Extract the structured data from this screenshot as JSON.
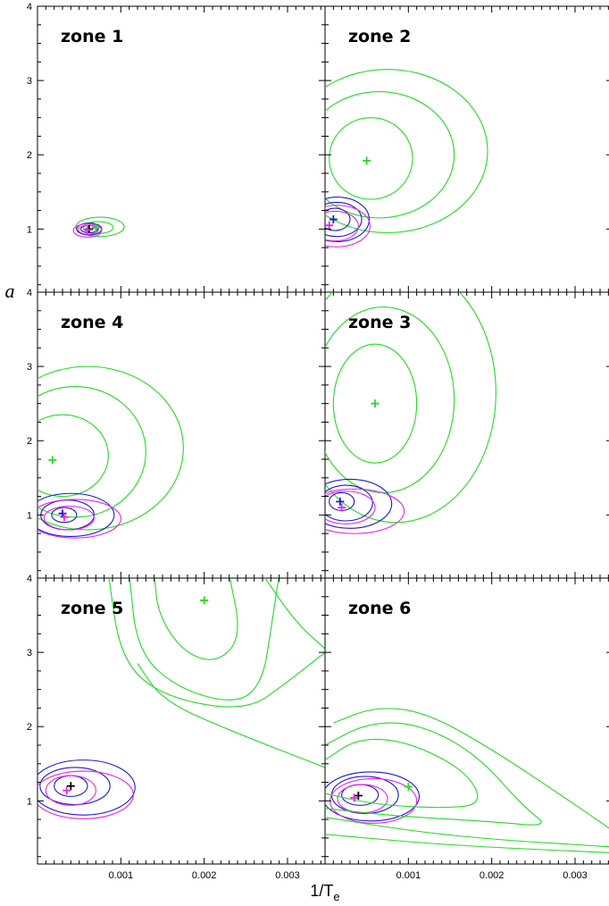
{
  "chart_data": {
    "type": "contour",
    "xlabel": "1/T",
    "xlabel_subscript": "e",
    "ylabel": "a",
    "xlim": [
      0.0,
      0.00345
    ],
    "ylim": [
      0.15,
      4.0
    ],
    "x_ticks": [
      0.001,
      0.002,
      0.003
    ],
    "x_tick_labels": [
      "0.001",
      "0.002",
      "0.003"
    ],
    "y_ticks": [
      1,
      2,
      3,
      4
    ],
    "y_tick_labels": [
      "1",
      "2",
      "3",
      "4"
    ],
    "grid": false,
    "colors": {
      "green": "#22dd22",
      "blue": "#1a1ad0",
      "magenta": "#ee22ee",
      "black": "#000000"
    },
    "panels": [
      {
        "title": "zone 1",
        "markers": [
          {
            "x": 0.00062,
            "y": 1.0,
            "color": "black"
          },
          {
            "x": 0.0006,
            "y": 0.99,
            "color": "magenta"
          },
          {
            "x": 0.0007,
            "y": 1.02,
            "color": "green"
          }
        ],
        "contours": [
          {
            "color": "green",
            "cx": 0.00073,
            "cy": 1.02,
            "rx": 0.00018,
            "ry": 0.08
          },
          {
            "color": "green",
            "cx": 0.00075,
            "cy": 1.03,
            "rx": 0.00029,
            "ry": 0.13
          },
          {
            "color": "blue",
            "cx": 0.00062,
            "cy": 1.0,
            "rx": 0.0001,
            "ry": 0.05
          },
          {
            "color": "blue",
            "cx": 0.00062,
            "cy": 1.0,
            "rx": 0.00015,
            "ry": 0.08
          },
          {
            "color": "magenta",
            "cx": 0.00061,
            "cy": 0.99,
            "rx": 0.00012,
            "ry": 0.06
          },
          {
            "color": "magenta",
            "cx": 0.0006,
            "cy": 0.98,
            "rx": 0.00017,
            "ry": 0.09
          }
        ]
      },
      {
        "title": "zone 2",
        "markers": [
          {
            "x": 0.0005,
            "y": 1.92,
            "color": "green"
          },
          {
            "x": 0.0001,
            "y": 1.13,
            "color": "blue"
          },
          {
            "x": 5e-05,
            "y": 1.05,
            "color": "magenta"
          }
        ],
        "contours": [
          {
            "color": "green",
            "cx": 0.00055,
            "cy": 1.95,
            "rx": 0.0005,
            "ry": 0.55
          },
          {
            "color": "green",
            "cx": 0.00065,
            "cy": 2.0,
            "rx": 0.0009,
            "ry": 0.85
          },
          {
            "color": "green",
            "cx": 0.00075,
            "cy": 2.05,
            "rx": 0.0012,
            "ry": 1.1
          },
          {
            "color": "blue",
            "cx": 0.00012,
            "cy": 1.13,
            "rx": 0.00018,
            "ry": 0.15
          },
          {
            "color": "blue",
            "cx": 0.00014,
            "cy": 1.13,
            "rx": 0.0003,
            "ry": 0.23
          },
          {
            "color": "blue",
            "cx": 0.00015,
            "cy": 1.13,
            "rx": 0.00038,
            "ry": 0.3
          },
          {
            "color": "magenta",
            "cx": 0.00012,
            "cy": 1.04,
            "rx": 0.00028,
            "ry": 0.2
          },
          {
            "color": "magenta",
            "cx": 0.00014,
            "cy": 1.04,
            "rx": 0.0004,
            "ry": 0.28
          }
        ]
      },
      {
        "title": "zone 4",
        "markers": [
          {
            "x": 0.00018,
            "y": 1.74,
            "color": "green"
          },
          {
            "x": 0.0003,
            "y": 1.02,
            "color": "blue"
          },
          {
            "x": 0.00032,
            "y": 0.97,
            "color": "magenta"
          }
        ],
        "contours": [
          {
            "color": "green",
            "cx": 0.0003,
            "cy": 1.8,
            "rx": 0.00055,
            "ry": 0.55
          },
          {
            "color": "green",
            "cx": 0.00045,
            "cy": 1.85,
            "rx": 0.00085,
            "ry": 0.88
          },
          {
            "color": "green",
            "cx": 0.0006,
            "cy": 1.9,
            "rx": 0.00115,
            "ry": 1.1
          },
          {
            "color": "blue",
            "cx": 0.00032,
            "cy": 1.0,
            "rx": 0.00015,
            "ry": 0.1
          },
          {
            "color": "blue",
            "cx": 0.00036,
            "cy": 1.0,
            "rx": 0.00032,
            "ry": 0.2
          },
          {
            "color": "blue",
            "cx": 0.0004,
            "cy": 1.0,
            "rx": 0.00052,
            "ry": 0.29
          },
          {
            "color": "magenta",
            "cx": 0.00038,
            "cy": 0.96,
            "rx": 0.0003,
            "ry": 0.16
          },
          {
            "color": "magenta",
            "cx": 0.00045,
            "cy": 0.95,
            "rx": 0.00055,
            "ry": 0.26
          }
        ]
      },
      {
        "title": "zone 3",
        "markers": [
          {
            "x": 0.0006,
            "y": 2.5,
            "color": "green"
          },
          {
            "x": 0.00018,
            "y": 1.18,
            "color": "blue"
          },
          {
            "x": 0.0002,
            "y": 1.1,
            "color": "magenta"
          }
        ],
        "contours": [
          {
            "color": "green",
            "cx": 0.0006,
            "cy": 2.5,
            "rx": 0.0005,
            "ry": 0.8
          },
          {
            "color": "green",
            "cx": 0.0007,
            "cy": 2.55,
            "rx": 0.00085,
            "ry": 1.25
          },
          {
            "color": "green",
            "cx": 0.00085,
            "cy": 2.65,
            "rx": 0.0012,
            "ry": 1.75
          },
          {
            "color": "blue",
            "cx": 0.0002,
            "cy": 1.18,
            "rx": 0.00015,
            "ry": 0.12
          },
          {
            "color": "blue",
            "cx": 0.00025,
            "cy": 1.16,
            "rx": 0.00032,
            "ry": 0.24
          },
          {
            "color": "blue",
            "cx": 0.0003,
            "cy": 1.15,
            "rx": 0.0005,
            "ry": 0.33
          },
          {
            "color": "magenta",
            "cx": 0.00025,
            "cy": 1.1,
            "rx": 0.00035,
            "ry": 0.22
          },
          {
            "color": "magenta",
            "cx": 0.00035,
            "cy": 1.05,
            "rx": 0.0006,
            "ry": 0.3
          }
        ]
      },
      {
        "title": "zone 5",
        "markers": [
          {
            "x": 0.002,
            "y": 3.7,
            "color": "green"
          },
          {
            "x": 0.0004,
            "y": 1.2,
            "color": "black"
          },
          {
            "x": 0.00035,
            "y": 1.14,
            "color": "magenta"
          }
        ],
        "contours": [
          {
            "color": "blue",
            "cx": 0.0004,
            "cy": 1.2,
            "rx": 0.0002,
            "ry": 0.14
          },
          {
            "color": "blue",
            "cx": 0.00045,
            "cy": 1.2,
            "rx": 0.00042,
            "ry": 0.25
          },
          {
            "color": "blue",
            "cx": 0.00055,
            "cy": 1.18,
            "rx": 0.00062,
            "ry": 0.37
          },
          {
            "color": "magenta",
            "cx": 0.0004,
            "cy": 1.14,
            "rx": 0.0003,
            "ry": 0.2
          },
          {
            "color": "magenta",
            "cx": 0.00055,
            "cy": 1.08,
            "rx": 0.0006,
            "ry": 0.32
          }
        ],
        "green_curves": [
          [
            [
              0.0014,
              4.05
            ],
            [
              0.00145,
              3.5
            ],
            [
              0.00175,
              3.0
            ],
            [
              0.00215,
              2.85
            ],
            [
              0.00245,
              3.2
            ],
            [
              0.0023,
              4.05
            ]
          ],
          [
            [
              0.0011,
              4.05
            ],
            [
              0.0012,
              3.0
            ],
            [
              0.0017,
              2.5
            ],
            [
              0.0024,
              2.3
            ],
            [
              0.0027,
              2.6
            ],
            [
              0.0028,
              3.3
            ],
            [
              0.0029,
              4.05
            ]
          ],
          [
            [
              0.00085,
              4.05
            ],
            [
              0.001,
              2.9
            ],
            [
              0.0015,
              2.4
            ],
            [
              0.0025,
              2.2
            ],
            [
              0.003,
              2.6
            ],
            [
              0.00345,
              3.0
            ]
          ],
          [
            [
              0.0027,
              4.05
            ],
            [
              0.0031,
              3.4
            ],
            [
              0.00345,
              3.05
            ]
          ],
          [
            [
              0.0012,
              2.85
            ],
            [
              0.0015,
              2.35
            ],
            [
              0.0023,
              1.95
            ],
            [
              0.00345,
              1.45
            ]
          ]
        ]
      },
      {
        "title": "zone 6",
        "markers": [
          {
            "x": 0.001,
            "y": 1.19,
            "color": "green"
          },
          {
            "x": 0.0004,
            "y": 1.07,
            "color": "black"
          },
          {
            "x": 0.00035,
            "y": 1.04,
            "color": "magenta"
          }
        ],
        "contours": [
          {
            "color": "blue",
            "cx": 0.00042,
            "cy": 1.08,
            "rx": 0.00022,
            "ry": 0.14
          },
          {
            "color": "blue",
            "cx": 0.00048,
            "cy": 1.08,
            "rx": 0.0004,
            "ry": 0.25
          },
          {
            "color": "blue",
            "cx": 0.00055,
            "cy": 1.06,
            "rx": 0.00058,
            "ry": 0.33
          },
          {
            "color": "magenta",
            "cx": 0.00045,
            "cy": 1.03,
            "rx": 0.0003,
            "ry": 0.19
          },
          {
            "color": "magenta",
            "cx": 0.00058,
            "cy": 1.0,
            "rx": 0.00052,
            "ry": 0.3
          }
        ],
        "green_curves": [
          [
            [
              0.0,
              1.55
            ],
            [
              0.0004,
              1.85
            ],
            [
              0.001,
              1.8
            ],
            [
              0.0017,
              1.4
            ],
            [
              0.0019,
              0.95
            ],
            [
              0.0014,
              0.9
            ],
            [
              0.0006,
              0.95
            ],
            [
              0.0,
              1.1
            ]
          ],
          [
            [
              0.0,
              1.75
            ],
            [
              0.0005,
              2.05
            ],
            [
              0.0011,
              2.05
            ],
            [
              0.0018,
              1.65
            ],
            [
              0.0024,
              0.9
            ],
            [
              0.0027,
              0.65
            ],
            [
              0.002,
              0.72
            ],
            [
              0.0008,
              0.8
            ],
            [
              0.0,
              0.9
            ]
          ],
          [
            [
              0.0001,
              2.05
            ],
            [
              0.0006,
              2.27
            ],
            [
              0.0012,
              2.2
            ],
            [
              0.002,
              1.7
            ],
            [
              0.003,
              0.95
            ],
            [
              0.00345,
              0.6
            ]
          ],
          [
            [
              0.0,
              0.78
            ],
            [
              0.001,
              0.6
            ],
            [
              0.002,
              0.48
            ],
            [
              0.00345,
              0.38
            ]
          ],
          [
            [
              0.0,
              0.55
            ],
            [
              0.0015,
              0.4
            ],
            [
              0.00345,
              0.3
            ]
          ]
        ]
      }
    ]
  }
}
